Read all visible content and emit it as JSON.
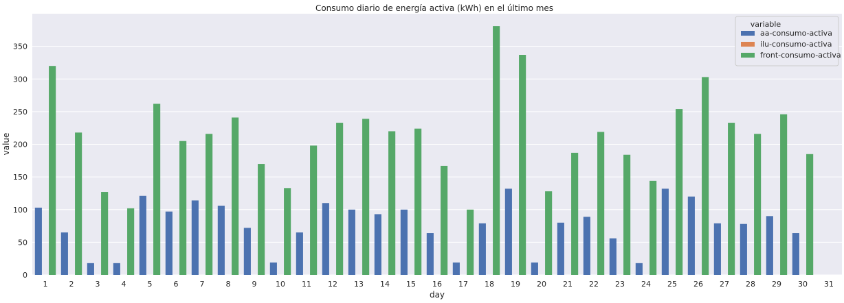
{
  "chart_data": {
    "type": "bar",
    "title": "Consumo diario de energía activa (kWh) en el último mes",
    "xlabel": "day",
    "ylabel": "value",
    "ylim": [
      0,
      400
    ],
    "yticks": [
      0,
      50,
      100,
      150,
      200,
      250,
      300,
      350
    ],
    "grid": true,
    "legend_title": "variable",
    "legend_position": "top-right",
    "categories": [
      "1",
      "2",
      "3",
      "4",
      "5",
      "6",
      "7",
      "8",
      "9",
      "10",
      "11",
      "12",
      "13",
      "14",
      "15",
      "16",
      "17",
      "18",
      "19",
      "20",
      "21",
      "22",
      "23",
      "24",
      "25",
      "26",
      "27",
      "28",
      "29",
      "30",
      "31"
    ],
    "series": [
      {
        "name": "aa-consumo-activa",
        "color": "#4c72b0",
        "values": [
          103,
          65,
          18,
          18,
          121,
          97,
          114,
          106,
          72,
          19,
          65,
          110,
          100,
          93,
          100,
          64,
          19,
          79,
          132,
          19,
          80,
          89,
          56,
          18,
          132,
          120,
          79,
          78,
          90,
          64,
          0
        ]
      },
      {
        "name": "ilu-consumo-activa",
        "color": "#dd8452",
        "values": [
          0,
          0,
          0,
          0,
          0,
          0,
          0,
          0,
          0,
          0,
          0,
          0,
          0,
          0,
          0,
          0,
          0,
          0,
          0,
          0,
          0,
          0,
          0,
          0,
          0,
          0,
          0,
          0,
          0,
          0,
          0
        ]
      },
      {
        "name": "front-consumo-activa",
        "color": "#55a868",
        "values": [
          320,
          218,
          127,
          102,
          262,
          205,
          216,
          241,
          170,
          133,
          198,
          233,
          239,
          220,
          224,
          167,
          100,
          381,
          337,
          128,
          187,
          219,
          184,
          144,
          254,
          303,
          233,
          216,
          246,
          185,
          0
        ]
      }
    ]
  }
}
